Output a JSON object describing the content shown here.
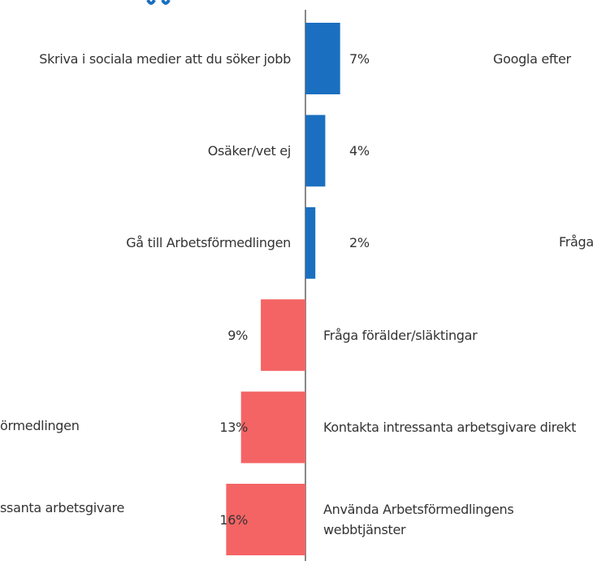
{
  "chart_data": {
    "type": "bar",
    "orientation": "horizontal",
    "categories": [
      "Skriva i sociala medier att du söker jobb",
      "Osäker/vet ej",
      "Gå till Arbetsförmedlingen",
      "Fråga förälder/släktingar",
      "Kontakta intressanta arbetsgivare direkt",
      "Använda Arbetsförmedlingens webbtjänster"
    ],
    "values": [
      7,
      4,
      2,
      9,
      13,
      16
    ],
    "value_labels": [
      "7%",
      "4%",
      "2%",
      "9%",
      "13%",
      "16%"
    ],
    "colors": [
      "#1a6fc0",
      "#1a6fc0",
      "#1a6fc0",
      "#f46464",
      "#f46464",
      "#f46464"
    ],
    "sides": [
      "right",
      "right",
      "right",
      "left",
      "left",
      "left"
    ],
    "annotations": [
      "Googla efter",
      "Fråga v",
      "örmedlingen",
      "ssanta arbetsgivare"
    ]
  }
}
